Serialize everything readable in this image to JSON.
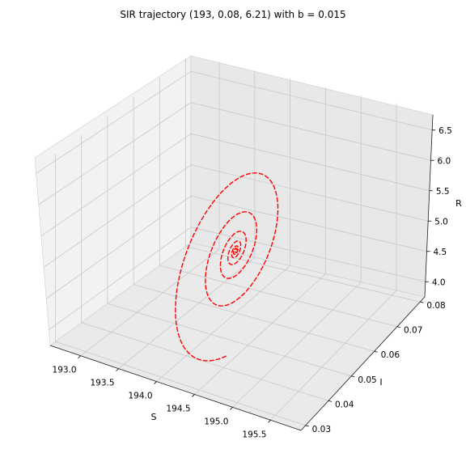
{
  "chart_data": {
    "type": "line",
    "projection": "3d",
    "title": "SIR trajectory (193, 0.08, 6.21) with b = 0.015",
    "xlabel": "S",
    "ylabel": "I",
    "zlabel": "R",
    "xlim": [
      192.6,
      195.9
    ],
    "ylim": [
      0.028,
      0.082
    ],
    "zlim": [
      3.75,
      6.75
    ],
    "x_ticks": [
      "193.0",
      "193.5",
      "194.0",
      "194.5",
      "195.0",
      "195.5"
    ],
    "y_ticks": [
      "0.03",
      "0.04",
      "0.05",
      "0.06",
      "0.07",
      "0.08"
    ],
    "z_ticks": [
      "4.0",
      "4.5",
      "5.0",
      "5.5",
      "6.0",
      "6.5"
    ],
    "grid": true,
    "series": [
      {
        "color": "#ff0000",
        "line_style": "dashed",
        "trajectory": "damped spiral converging to equilibrium",
        "start": {
          "S": 193.0,
          "I": 0.08,
          "R": 6.21
        },
        "equilibrium": {
          "S": 194.2,
          "I": 0.053,
          "R": 4.55
        }
      }
    ]
  }
}
